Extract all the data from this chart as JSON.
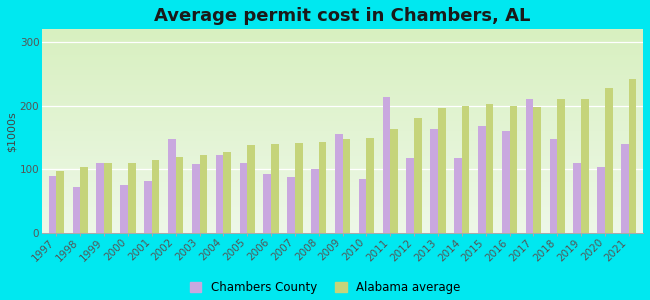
{
  "title": "Average permit cost in Chambers, AL",
  "ylabel": "$1000s",
  "years": [
    1997,
    1998,
    1999,
    2000,
    2001,
    2002,
    2003,
    2004,
    2005,
    2006,
    2007,
    2008,
    2009,
    2010,
    2011,
    2012,
    2013,
    2014,
    2015,
    2016,
    2017,
    2018,
    2019,
    2020,
    2021
  ],
  "chambers": [
    90,
    73,
    110,
    76,
    82,
    148,
    108,
    123,
    110,
    92,
    88,
    100,
    155,
    85,
    213,
    118,
    163,
    118,
    168,
    160,
    210,
    148,
    110,
    103,
    140
  ],
  "alabama": [
    98,
    103,
    110,
    110,
    115,
    120,
    122,
    128,
    138,
    140,
    142,
    143,
    148,
    150,
    163,
    180,
    197,
    200,
    203,
    200,
    198,
    210,
    210,
    228,
    242
  ],
  "chambers_color": "#c9a8df",
  "alabama_color": "#c5d47a",
  "bg_color": "#00e8f0",
  "plot_bg_color": "#e8f5e0",
  "ylim": [
    0,
    320
  ],
  "yticks": [
    0,
    100,
    200,
    300
  ],
  "title_fontsize": 13,
  "axis_fontsize": 7.5,
  "legend_fontsize": 8.5,
  "bar_width": 0.32
}
